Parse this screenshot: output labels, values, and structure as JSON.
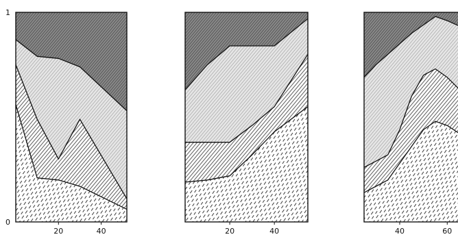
{
  "chart_data": [
    {
      "type": "area",
      "stacked": true,
      "normalized": true,
      "xlim": [
        0,
        52
      ],
      "ylim": [
        0,
        1
      ],
      "yticks": [
        {
          "value": 0,
          "label": "0"
        },
        {
          "value": 1,
          "label": "1"
        }
      ],
      "xticks": [
        {
          "value": 20,
          "label": "20"
        },
        {
          "value": 40,
          "label": "40"
        }
      ],
      "boundaries": [
        {
          "x": [
            0,
            10,
            20,
            30,
            52
          ],
          "y": [
            0.56,
            0.21,
            0.2,
            0.17,
            0.06
          ]
        },
        {
          "x": [
            0,
            10,
            20,
            30,
            52
          ],
          "y": [
            0.75,
            0.49,
            0.3,
            0.49,
            0.11
          ]
        },
        {
          "x": [
            0,
            10,
            20,
            30,
            52
          ],
          "y": [
            0.87,
            0.79,
            0.78,
            0.74,
            0.53
          ]
        }
      ],
      "grid": false
    },
    {
      "type": "area",
      "stacked": true,
      "normalized": true,
      "xlim": [
        0,
        55
      ],
      "ylim": [
        0,
        1
      ],
      "yticks": [],
      "xticks": [
        {
          "value": 20,
          "label": "20"
        },
        {
          "value": 40,
          "label": "40"
        }
      ],
      "boundaries": [
        {
          "x": [
            0,
            10,
            20,
            30,
            40,
            55
          ],
          "y": [
            0.19,
            0.2,
            0.22,
            0.32,
            0.43,
            0.55
          ]
        },
        {
          "x": [
            0,
            10,
            20,
            30,
            40,
            55
          ],
          "y": [
            0.38,
            0.38,
            0.38,
            0.46,
            0.55,
            0.8
          ]
        },
        {
          "x": [
            0,
            10,
            20,
            30,
            40,
            55
          ],
          "y": [
            0.63,
            0.75,
            0.84,
            0.84,
            0.84,
            0.97
          ]
        }
      ],
      "grid": false
    },
    {
      "type": "area",
      "stacked": true,
      "normalized": true,
      "xlim": [
        25,
        68
      ],
      "ylim": [
        0,
        1
      ],
      "yticks": [],
      "xticks": [
        {
          "value": 40,
          "label": "40"
        },
        {
          "value": 60,
          "label": "60"
        }
      ],
      "boundaries": [
        {
          "x": [
            25,
            30,
            35,
            40,
            45,
            50,
            55,
            60,
            68
          ],
          "y": [
            0.14,
            0.17,
            0.2,
            0.28,
            0.36,
            0.44,
            0.48,
            0.46,
            0.4
          ]
        },
        {
          "x": [
            25,
            30,
            35,
            40,
            45,
            50,
            55,
            60,
            68
          ],
          "y": [
            0.26,
            0.29,
            0.32,
            0.44,
            0.6,
            0.7,
            0.73,
            0.69,
            0.6
          ]
        },
        {
          "x": [
            25,
            30,
            35,
            40,
            45,
            50,
            55,
            60,
            68
          ],
          "y": [
            0.69,
            0.75,
            0.8,
            0.85,
            0.9,
            0.94,
            0.98,
            0.96,
            0.92
          ]
        }
      ],
      "grid": false
    }
  ]
}
